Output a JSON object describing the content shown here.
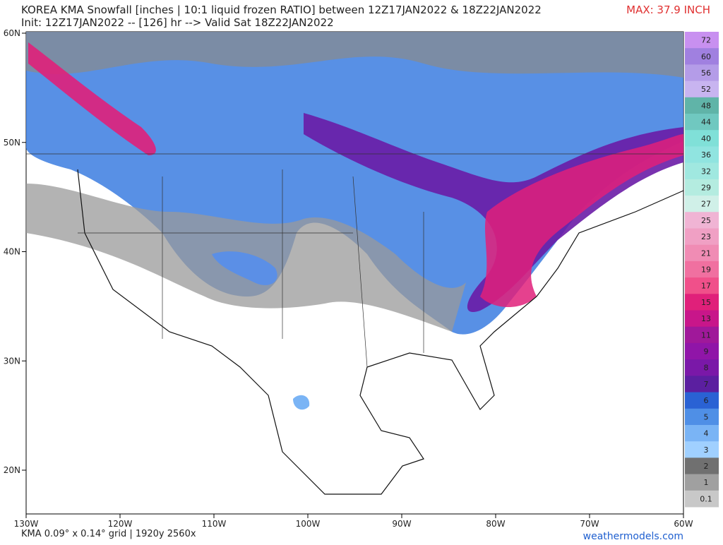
{
  "header": {
    "title": "KOREA KMA Snowfall [inches | 10:1 liquid frozen RATIO] between 12Z17JAN2022 & 18Z22JAN2022",
    "subtitle": "Init: 12Z17JAN2022 -- [126] hr --> Valid Sat 18Z22JAN2022",
    "max": "MAX: 37.9 INCH"
  },
  "map": {
    "lat_labels": [
      "60N",
      "50N",
      "40N",
      "30N",
      "20N"
    ],
    "lon_labels": [
      "130W",
      "120W",
      "110W",
      "100W",
      "90W",
      "80W",
      "70W",
      "60W"
    ]
  },
  "colorbar": {
    "labels": [
      "72",
      "60",
      "56",
      "52",
      "48",
      "44",
      "40",
      "36",
      "32",
      "29",
      "27",
      "25",
      "23",
      "21",
      "19",
      "17",
      "15",
      "13",
      "11",
      "9",
      "8",
      "7",
      "6",
      "5",
      "4",
      "3",
      "2",
      "1",
      "0.1"
    ],
    "colors": [
      "#c890f0",
      "#a080e0",
      "#b49ce8",
      "#c8b4f0",
      "#60b4a8",
      "#70c8c0",
      "#80e0d8",
      "#90e4e0",
      "#a0e8e0",
      "#b4ece0",
      "#d0f0e8",
      "#f0b4d4",
      "#f0a0c4",
      "#f08cb4",
      "#f070a0",
      "#f0508a",
      "#e0207a",
      "#c8168a",
      "#a0189a",
      "#9015a8",
      "#7a18a8",
      "#5b1fa0",
      "#2a62d4",
      "#4f8fe6",
      "#7ab4f5",
      "#a0d0ff",
      "#707070",
      "#a0a0a0",
      "#c8c8c8"
    ]
  },
  "footer": {
    "grid": "KMA 0.09° x 0.14° grid | 1920y 2560x",
    "site": "weathermodels.com"
  }
}
